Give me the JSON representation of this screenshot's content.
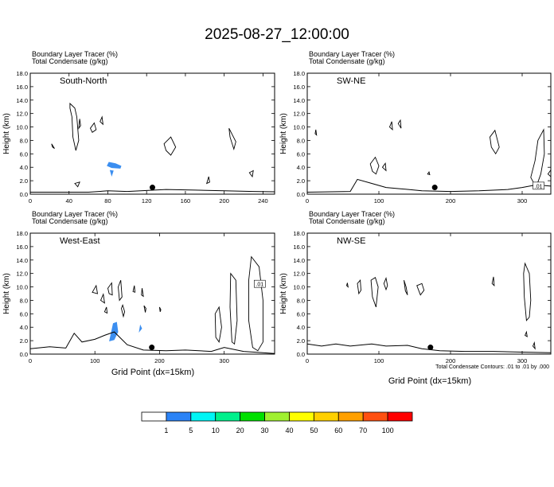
{
  "title": "2025-08-27_12:00:00",
  "x_axis_label": "Grid Point (dx=15km)",
  "contour_note": "Total Condensate Contours: .01 to .01 by .000",
  "colors": {
    "tracer": "#3b8ef0",
    "ground": "#000000",
    "marker": "#000000"
  },
  "colorbar": {
    "colors": [
      "#ffffff",
      "#2b83f6",
      "#00f5f5",
      "#00f08c",
      "#00e000",
      "#a0f030",
      "#ffff00",
      "#ffd000",
      "#ffa000",
      "#ff5010",
      "#ff0000"
    ],
    "labels": [
      "1",
      "5",
      "10",
      "20",
      "30",
      "40",
      "50",
      "60",
      "70",
      "100"
    ]
  },
  "chart_data": [
    {
      "type": "contour",
      "panel_label": "South-North",
      "header_line1": "Boundary Layer Tracer   (%)",
      "header_line2": "Total Condensate   (g/kg)",
      "ylabel": "Height (km)",
      "xlim": [
        0,
        252
      ],
      "ylim": [
        0,
        18
      ],
      "xticks": [
        0,
        40,
        80,
        120,
        160,
        200,
        240
      ],
      "yticks": [
        "0.0",
        "2.0",
        "4.0",
        "6.0",
        "8.0",
        "10.0",
        "12.0",
        "14.0",
        "16.0",
        "18.0"
      ],
      "marker": {
        "x": 126,
        "y": 1.0
      },
      "ground": [
        [
          0,
          0.3
        ],
        [
          60,
          0.3
        ],
        [
          80,
          0.5
        ],
        [
          100,
          0.4
        ],
        [
          140,
          0.7
        ],
        [
          170,
          0.6
        ],
        [
          200,
          0.5
        ],
        [
          230,
          0.4
        ],
        [
          252,
          0.35
        ]
      ],
      "tracer_regions": [
        [
          [
            79,
            4.2
          ],
          [
            81,
            4.8
          ],
          [
            88,
            4.6
          ],
          [
            94,
            4.2
          ],
          [
            93,
            3.8
          ],
          [
            84,
            3.9
          ]
        ],
        [
          [
            82,
            3.6
          ],
          [
            84,
            2.6
          ],
          [
            86,
            3.5
          ]
        ]
      ],
      "condensate_contours": [
        [
          [
            41,
            13.5
          ],
          [
            46,
            12.8
          ],
          [
            48,
            11.5
          ],
          [
            50,
            8.0
          ],
          [
            47,
            6.5
          ],
          [
            44,
            8.5
          ],
          [
            43,
            11.5
          ],
          [
            41,
            12.8
          ]
        ],
        [
          [
            51,
            11.2
          ],
          [
            52,
            10.2
          ],
          [
            50,
            9.8
          ]
        ],
        [
          [
            62,
            9.8
          ],
          [
            66,
            10.6
          ],
          [
            68,
            9.6
          ],
          [
            64,
            9.2
          ]
        ],
        [
          [
            72,
            10.8
          ],
          [
            74,
            11.5
          ],
          [
            75,
            10.4
          ]
        ],
        [
          [
            22,
            7.5
          ],
          [
            25,
            6.8
          ],
          [
            23,
            7.0
          ]
        ],
        [
          [
            138,
            7.5
          ],
          [
            145,
            8.5
          ],
          [
            150,
            7.0
          ],
          [
            145,
            5.8
          ],
          [
            140,
            6.5
          ]
        ],
        [
          [
            205,
            9.8
          ],
          [
            212,
            7.8
          ],
          [
            210,
            6.7
          ],
          [
            206,
            8.5
          ]
        ],
        [
          [
            182,
            1.6
          ],
          [
            184,
            2.6
          ],
          [
            185,
            1.8
          ]
        ],
        [
          [
            46,
            1.6
          ],
          [
            51,
            1.8
          ],
          [
            49,
            1.1
          ]
        ],
        [
          [
            226,
            3.2
          ],
          [
            230,
            3.5
          ],
          [
            229,
            2.6
          ]
        ]
      ]
    },
    {
      "type": "contour",
      "panel_label": "SW-NE",
      "header_line1": "Boundary Layer Tracer   (%)",
      "header_line2": "Total Condensate   (g/kg)",
      "ylabel": "Height (km)",
      "xlim": [
        0,
        340
      ],
      "ylim": [
        0,
        18
      ],
      "xticks": [
        0,
        100,
        200,
        300
      ],
      "yticks": [
        "0.0",
        "2.0",
        "4.0",
        "6.0",
        "8.0",
        "10.0",
        "12.0",
        "14.0",
        "16.0",
        "18.0"
      ],
      "contour_label": ".01",
      "contour_label_pos": [
        323,
        1.2
      ],
      "marker": {
        "x": 178,
        "y": 1.0
      },
      "ground": [
        [
          0,
          0.3
        ],
        [
          60,
          0.4
        ],
        [
          70,
          2.2
        ],
        [
          90,
          1.6
        ],
        [
          110,
          1.0
        ],
        [
          130,
          0.8
        ],
        [
          160,
          0.5
        ],
        [
          200,
          0.4
        ],
        [
          240,
          0.5
        ],
        [
          280,
          0.7
        ],
        [
          300,
          1.0
        ],
        [
          320,
          1.4
        ],
        [
          340,
          1.2
        ]
      ],
      "tracer_regions": [],
      "condensate_contours": [
        [
          [
            115,
            10.0
          ],
          [
            118,
            10.8
          ],
          [
            119,
            9.6
          ]
        ],
        [
          [
            127,
            10.5
          ],
          [
            130,
            11.0
          ],
          [
            131,
            9.8
          ]
        ],
        [
          [
            88,
            4.5
          ],
          [
            95,
            5.5
          ],
          [
            100,
            4.2
          ],
          [
            96,
            3.0
          ],
          [
            91,
            3.4
          ]
        ],
        [
          [
            105,
            4.0
          ],
          [
            109,
            4.6
          ],
          [
            110,
            3.5
          ]
        ],
        [
          [
            255,
            8.5
          ],
          [
            262,
            9.5
          ],
          [
            268,
            7.0
          ],
          [
            263,
            6.0
          ],
          [
            257,
            7.0
          ]
        ],
        [
          [
            322,
            8.0
          ],
          [
            330,
            9.6
          ],
          [
            331,
            6.0
          ],
          [
            326,
            3.0
          ],
          [
            322,
            1.8
          ],
          [
            317,
            1.5
          ],
          [
            312,
            2.5
          ],
          [
            318,
            5.0
          ]
        ],
        [
          [
            340,
            3.6
          ],
          [
            336,
            3.0
          ],
          [
            340,
            2.6
          ]
        ],
        [
          [
            11,
            9.0
          ],
          [
            12,
            9.6
          ],
          [
            13,
            8.8
          ]
        ],
        [
          [
            168,
            3.0
          ],
          [
            170,
            3.3
          ],
          [
            171,
            2.9
          ]
        ]
      ]
    },
    {
      "type": "contour",
      "panel_label": "West-East",
      "header_line1": "Boundary Layer Tracer   (%)",
      "header_line2": "Total Condensate   (g/kg)",
      "ylabel": "Height (km)",
      "xlim": [
        0,
        378
      ],
      "ylim": [
        0,
        18
      ],
      "xticks": [
        0,
        100,
        200,
        300
      ],
      "yticks": [
        "0.0",
        "2.0",
        "4.0",
        "6.0",
        "8.0",
        "10.0",
        "12.0",
        "14.0",
        "16.0",
        "18.0"
      ],
      "contour_label": ".01",
      "contour_label_pos": [
        355,
        10.4
      ],
      "marker": {
        "x": 188,
        "y": 1.0
      },
      "ground": [
        [
          0,
          0.8
        ],
        [
          30,
          1.1
        ],
        [
          55,
          0.9
        ],
        [
          68,
          3.1
        ],
        [
          80,
          1.8
        ],
        [
          100,
          2.2
        ],
        [
          115,
          2.8
        ],
        [
          130,
          3.3
        ],
        [
          150,
          1.4
        ],
        [
          175,
          0.6
        ],
        [
          210,
          0.5
        ],
        [
          240,
          0.6
        ],
        [
          280,
          0.4
        ],
        [
          300,
          1.0
        ],
        [
          330,
          0.4
        ],
        [
          360,
          0.2
        ],
        [
          378,
          0.1
        ]
      ],
      "tracer_regions": [
        [
          [
            122,
            1.9
          ],
          [
            128,
            4.6
          ],
          [
            134,
            4.8
          ],
          [
            136,
            3.3
          ],
          [
            130,
            2.1
          ]
        ],
        [
          [
            168,
            3.2
          ],
          [
            170,
            4.4
          ],
          [
            173,
            3.8
          ]
        ]
      ],
      "condensate_contours": [
        [
          [
            96,
            9.2
          ],
          [
            102,
            10.2
          ],
          [
            104,
            9.0
          ]
        ],
        [
          [
            109,
            8.0
          ],
          [
            113,
            8.9
          ],
          [
            115,
            7.6
          ]
        ],
        [
          [
            120,
            9.8
          ],
          [
            126,
            10.6
          ],
          [
            127,
            8.8
          ],
          [
            122,
            9.0
          ]
        ],
        [
          [
            136,
            10.0
          ],
          [
            140,
            11.0
          ],
          [
            142,
            8.5
          ],
          [
            138,
            8.0
          ]
        ],
        [
          [
            143,
            7.3
          ],
          [
            146,
            6.3
          ],
          [
            144,
            5.6
          ],
          [
            141,
            6.8
          ]
        ],
        [
          [
            115,
            6.3
          ],
          [
            118,
            7.0
          ],
          [
            119,
            6.1
          ]
        ],
        [
          [
            159,
            9.3
          ],
          [
            161,
            10.2
          ],
          [
            162,
            9.2
          ]
        ],
        [
          [
            173,
            9.8
          ],
          [
            175,
            8.6
          ],
          [
            172,
            8.8
          ]
        ],
        [
          [
            176,
            7.2
          ],
          [
            179,
            6.8
          ],
          [
            178,
            6.2
          ]
        ],
        [
          [
            200,
            7.0
          ],
          [
            202,
            6.6
          ],
          [
            201,
            6.3
          ]
        ],
        [
          [
            286,
            6.0
          ],
          [
            292,
            7.0
          ],
          [
            296,
            4.0
          ],
          [
            292,
            1.8
          ],
          [
            287,
            2.5
          ]
        ],
        [
          [
            310,
            12.0
          ],
          [
            318,
            11.0
          ],
          [
            320,
            5.0
          ],
          [
            316,
            1.5
          ],
          [
            312,
            1.8
          ],
          [
            309,
            7.0
          ]
        ],
        [
          [
            342,
            14.5
          ],
          [
            354,
            13.0
          ],
          [
            360,
            8.0
          ],
          [
            360,
            1.8
          ],
          [
            352,
            0.5
          ],
          [
            344,
            1.0
          ],
          [
            338,
            5.0
          ],
          [
            338,
            11.0
          ]
        ]
      ]
    },
    {
      "type": "contour",
      "panel_label": "NW-SE",
      "header_line1": "Boundary Layer Tracer   (%)",
      "header_line2": "Total Condensate   (g/kg)",
      "ylabel": "Height (km)",
      "xlim": [
        0,
        340
      ],
      "ylim": [
        0,
        18
      ],
      "xticks": [
        0,
        100,
        200,
        300
      ],
      "yticks": [
        "0.0",
        "2.0",
        "4.0",
        "6.0",
        "8.0",
        "10.0",
        "12.0",
        "14.0",
        "16.0",
        "18.0"
      ],
      "marker": {
        "x": 172,
        "y": 1.0
      },
      "ground": [
        [
          0,
          1.5
        ],
        [
          20,
          1.2
        ],
        [
          40,
          1.5
        ],
        [
          60,
          1.2
        ],
        [
          90,
          1.5
        ],
        [
          110,
          1.2
        ],
        [
          140,
          1.3
        ],
        [
          160,
          0.8
        ],
        [
          185,
          0.5
        ],
        [
          220,
          0.4
        ],
        [
          260,
          0.4
        ],
        [
          300,
          0.3
        ],
        [
          340,
          0.2
        ]
      ],
      "tracer_regions": [],
      "condensate_contours": [
        [
          [
            55,
            10.2
          ],
          [
            56,
            10.6
          ],
          [
            57,
            10.0
          ]
        ],
        [
          [
            70,
            10.5
          ],
          [
            74,
            11.0
          ],
          [
            75,
            9.5
          ],
          [
            72,
            9.0
          ]
        ],
        [
          [
            89,
            11.0
          ],
          [
            95,
            11.4
          ],
          [
            99,
            10.0
          ],
          [
            96,
            7.0
          ],
          [
            91,
            8.5
          ]
        ],
        [
          [
            107,
            10.5
          ],
          [
            110,
            11.3
          ],
          [
            112,
            10.2
          ],
          [
            110,
            9.6
          ]
        ],
        [
          [
            135,
            11.0
          ],
          [
            138,
            10.0
          ],
          [
            140,
            8.8
          ],
          [
            137,
            9.4
          ]
        ],
        [
          [
            153,
            10.2
          ],
          [
            160,
            10.5
          ],
          [
            163,
            9.5
          ],
          [
            158,
            8.8
          ]
        ],
        [
          [
            258,
            10.5
          ],
          [
            260,
            11.5
          ],
          [
            261,
            10.2
          ]
        ],
        [
          [
            304,
            13.5
          ],
          [
            310,
            12.0
          ],
          [
            312,
            8.0
          ],
          [
            310,
            5.5
          ],
          [
            306,
            5.0
          ],
          [
            303,
            8.5
          ],
          [
            302,
            12.0
          ]
        ],
        [
          [
            304,
            2.8
          ],
          [
            306,
            3.3
          ],
          [
            307,
            2.6
          ]
        ],
        [
          [
            315,
            1.2
          ],
          [
            317,
            1.7
          ],
          [
            318,
            0.8
          ]
        ]
      ]
    }
  ]
}
